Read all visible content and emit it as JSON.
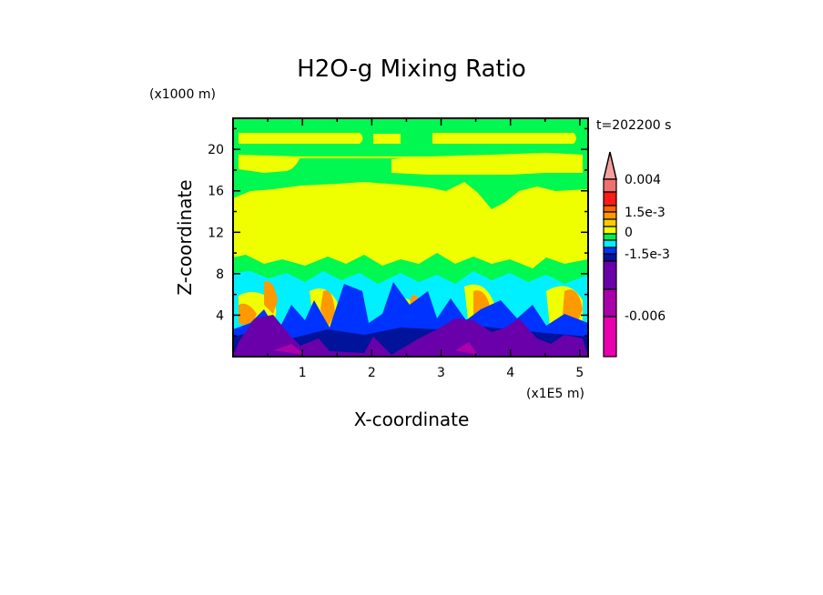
{
  "chart_data": {
    "type": "heatmap",
    "title": "H2O-g Mixing Ratio",
    "xlabel": "X-coordinate",
    "ylabel": "Z-coordinate",
    "x_unit": "(x1E5 m)",
    "y_unit": "(x1000 m)",
    "time_label": "t=202200 s",
    "xlim": [
      0,
      5.12
    ],
    "ylim": [
      0,
      23
    ],
    "x_ticks": [
      "1",
      "2",
      "3",
      "4",
      "5"
    ],
    "x_tick_values": [
      1,
      2,
      3,
      4,
      5
    ],
    "y_ticks": [
      "4",
      "8",
      "12",
      "16",
      "20"
    ],
    "y_tick_values": [
      4,
      8,
      12,
      16,
      20
    ],
    "colorbar": {
      "labels": [
        "0.004",
        "1.5e-3",
        "0",
        "-1.5e-3",
        "-0.006"
      ],
      "colors_top_to_bottom": [
        "#f4a0a0",
        "#f07070",
        "#ff1a1a",
        "#ff6600",
        "#ff9900",
        "#ffcc00",
        "#f0ff00",
        "#00f050",
        "#00f0ff",
        "#0033ff",
        "#00139a",
        "#6a00aa",
        "#aa00aa",
        "#e800b0"
      ]
    }
  }
}
